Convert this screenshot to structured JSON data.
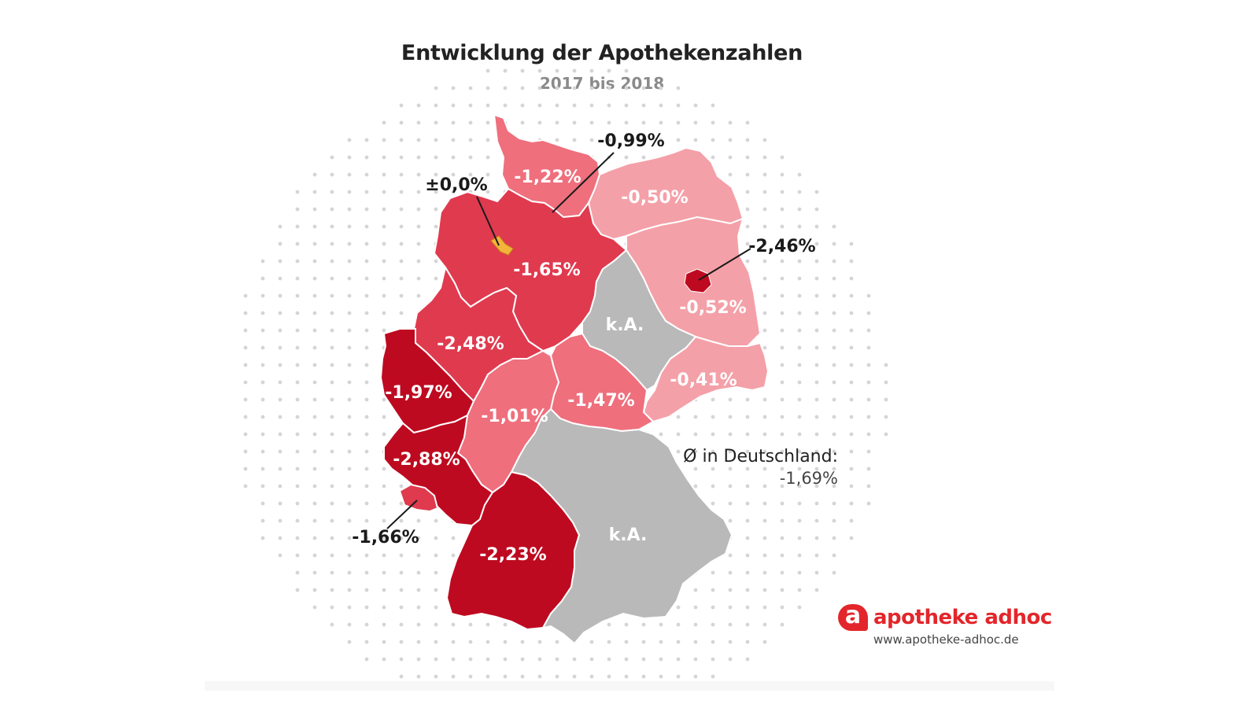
{
  "title": "Entwicklung der Apothekenzahlen",
  "subtitle": "2017 bis 2018",
  "average": {
    "label": "Ø in Deutschland:",
    "value": "-1,69%"
  },
  "brand": {
    "logo_letter": "a",
    "name": "apotheke adhoc",
    "url": "www.apotheke-adhoc.de"
  },
  "colors": {
    "darkest": "#be0a20",
    "dark": "#e03a4f",
    "medium": "#ef6f7d",
    "light": "#f4a0a8",
    "no_data": "#b9b9b9",
    "bremen": "#f2b43b",
    "dots": "#d5d5d5"
  },
  "regions": [
    {
      "id": "schleswig-holstein",
      "label": "-1,22%",
      "value": -1.22,
      "color_key": "medium"
    },
    {
      "id": "hamburg",
      "label": "-0,99%",
      "value": -0.99,
      "color_key": "medium"
    },
    {
      "id": "mecklenburg-vorpommern",
      "label": "-0,50%",
      "value": -0.5,
      "color_key": "light"
    },
    {
      "id": "bremen",
      "label": "±0,0%",
      "value": 0.0,
      "color_key": "bremen"
    },
    {
      "id": "niedersachsen",
      "label": "-1,65%",
      "value": -1.65,
      "color_key": "dark"
    },
    {
      "id": "berlin",
      "label": "-2,46%",
      "value": -2.46,
      "color_key": "darkest"
    },
    {
      "id": "brandenburg",
      "label": "-0,52%",
      "value": -0.52,
      "color_key": "light"
    },
    {
      "id": "sachsen-anhalt",
      "label": "k.A.",
      "value": null,
      "color_key": "no_data"
    },
    {
      "id": "nordrhein-westfalen",
      "label": "-2,48%",
      "value": -2.48,
      "color_key": "darkest"
    },
    {
      "id": "sachsen",
      "label": "-0,41%",
      "value": -0.41,
      "color_key": "light"
    },
    {
      "id": "hessen",
      "label": "-1,01%",
      "value": -1.01,
      "color_key": "medium"
    },
    {
      "id": "thueringen",
      "label": "-1,47%",
      "value": -1.47,
      "color_key": "medium"
    },
    {
      "id": "westfalen-lippe",
      "label": "-1,97%",
      "value": -1.97,
      "color_key": "dark"
    },
    {
      "id": "rheinland-pfalz",
      "label": "-2,88%",
      "value": -2.88,
      "color_key": "darkest"
    },
    {
      "id": "saarland",
      "label": "-1,66%",
      "value": -1.66,
      "color_key": "dark"
    },
    {
      "id": "bayern",
      "label": "k.A.",
      "value": null,
      "color_key": "no_data"
    },
    {
      "id": "baden-wuerttemberg",
      "label": "-2,23%",
      "value": -2.23,
      "color_key": "darkest"
    }
  ]
}
